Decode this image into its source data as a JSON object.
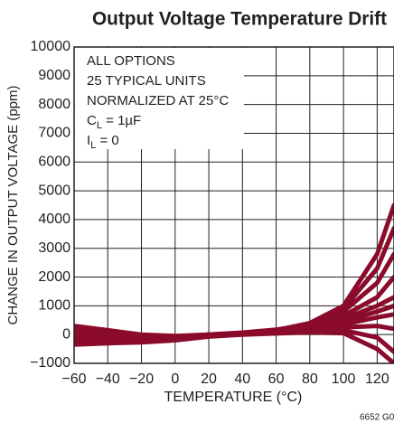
{
  "chart_data": {
    "type": "line",
    "title": "Output Voltage Temperature Drift",
    "xlabel": "TEMPERATURE (°C)",
    "ylabel": "CHANGE IN OUTPUT VOLTAGE (ppm)",
    "footnote": "6652 G0",
    "annotation": [
      "ALL OPTIONS",
      "25 TYPICAL UNITS",
      "NORMALIZED AT 25°C",
      [
        "C",
        "L",
        " = 1µF"
      ],
      [
        "I",
        "L",
        " = 0"
      ]
    ],
    "x": [
      -60,
      -40,
      -20,
      0,
      20,
      40,
      60,
      80,
      100,
      120,
      130
    ],
    "xlim": [
      -60,
      130
    ],
    "xticks": [
      {
        "value": -60,
        "label": "−60"
      },
      {
        "value": -40,
        "label": "−40"
      },
      {
        "value": -20,
        "label": "−20"
      },
      0,
      20,
      40,
      60,
      80,
      100,
      120
    ],
    "ylim": [
      -1000,
      10000
    ],
    "yticks": [
      {
        "value": -1000,
        "label": "−1000"
      },
      0,
      1000,
      2000,
      3000,
      4000,
      5000,
      6000,
      7000,
      8000,
      9000,
      10000
    ],
    "grid": true,
    "series": [
      {
        "color": "#8b0b2c",
        "values": [
          300,
          150,
          0,
          -50,
          0,
          50,
          150,
          400,
          1000,
          2800,
          4500
        ]
      },
      {
        "color": "#8b0b2c",
        "values": [
          250,
          120,
          -20,
          -60,
          0,
          60,
          160,
          380,
          900,
          2300,
          3700
        ]
      },
      {
        "color": "#8b0b2c",
        "values": [
          200,
          80,
          -50,
          -80,
          0,
          70,
          170,
          350,
          800,
          1800,
          2800
        ]
      },
      {
        "color": "#8b0b2c",
        "values": [
          150,
          50,
          -80,
          -100,
          -10,
          60,
          150,
          320,
          650,
          1300,
          2000
        ]
      },
      {
        "color": "#8b0b2c",
        "values": [
          100,
          0,
          -120,
          -120,
          -20,
          50,
          140,
          280,
          550,
          1000,
          1300
        ]
      },
      {
        "color": "#8b0b2c",
        "values": [
          0,
          -80,
          -150,
          -130,
          -30,
          40,
          120,
          240,
          450,
          800,
          1000
        ]
      },
      {
        "color": "#8b0b2c",
        "values": [
          -100,
          -150,
          -200,
          -160,
          -40,
          30,
          100,
          200,
          350,
          600,
          700
        ]
      },
      {
        "color": "#8b0b2c",
        "values": [
          -200,
          -220,
          -230,
          -180,
          -50,
          20,
          80,
          160,
          250,
          300,
          200
        ]
      },
      {
        "color": "#8b0b2c",
        "values": [
          -300,
          -260,
          -250,
          -190,
          -60,
          10,
          60,
          120,
          150,
          -100,
          -600
        ]
      },
      {
        "color": "#8b0b2c",
        "values": [
          -350,
          -300,
          -270,
          -200,
          -70,
          0,
          40,
          80,
          50,
          -500,
          -1000
        ]
      }
    ]
  }
}
